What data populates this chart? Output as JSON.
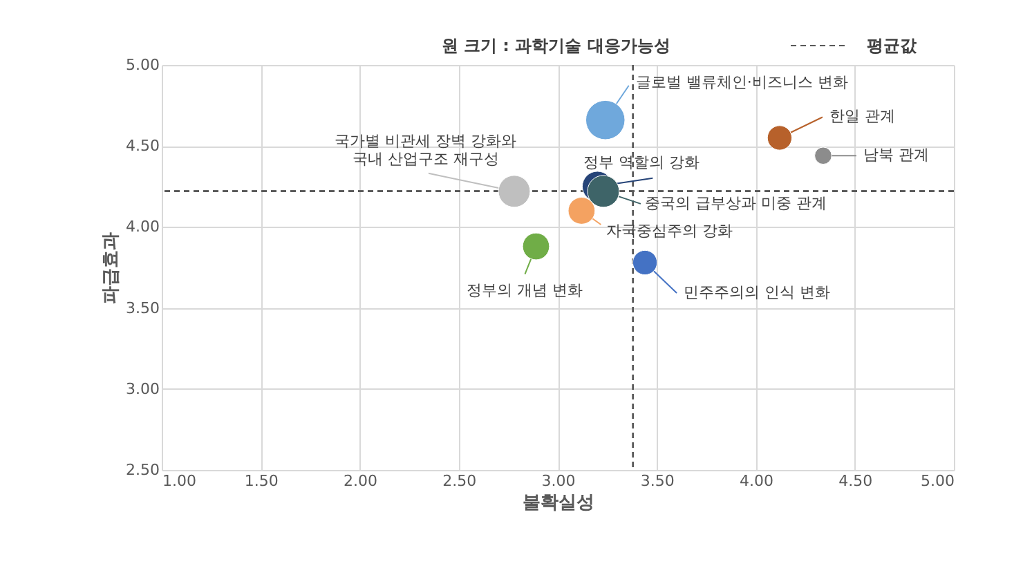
{
  "chart_data": {
    "type": "bubble",
    "xlabel": "불확실성",
    "ylabel": "파급효과",
    "legend_title": "원 크기 : 과학기술 대응가능성",
    "xlim": [
      1.0,
      5.0
    ],
    "xticks": [
      {
        "value": 1.0,
        "label": "1.00"
      },
      {
        "value": 1.5,
        "label": "1.50"
      },
      {
        "value": 2.0,
        "label": "2.00"
      },
      {
        "value": 2.5,
        "label": "2.50"
      },
      {
        "value": 3.0,
        "label": "3.00"
      },
      {
        "value": 3.5,
        "label": "3.50"
      },
      {
        "value": 4.0,
        "label": "4.00"
      },
      {
        "value": 4.5,
        "label": "4.50"
      },
      {
        "value": 5.0,
        "label": "5.00"
      }
    ],
    "ylim": [
      2.5,
      5.0
    ],
    "yticks": [
      {
        "value": 2.5,
        "label": "2.50"
      },
      {
        "value": 3.0,
        "label": "3.00"
      },
      {
        "value": 3.5,
        "label": "3.50"
      },
      {
        "value": 4.0,
        "label": "4.00"
      },
      {
        "value": 4.5,
        "label": "4.50"
      },
      {
        "value": 5.0,
        "label": "5.00"
      }
    ],
    "grid": true,
    "legend": "top",
    "marker": "circle",
    "series": [
      {
        "name": "글로벌 밸류체인·비즈니스 변화",
        "color": "#6fa8dc",
        "x": [
          3.24
        ],
        "values": [
          4.66
        ],
        "sizes": [
          1.0
        ]
      },
      {
        "name": "한일 관계",
        "color": "#b7612b",
        "x": [
          4.12
        ],
        "values": [
          4.55
        ],
        "sizes": [
          0.39
        ]
      },
      {
        "name": "남북 관계",
        "color": "#8c8c8c",
        "x": [
          4.34
        ],
        "values": [
          4.44
        ],
        "sizes": [
          0.19
        ]
      },
      {
        "name": "국가별 비관세 장벽 강화와\n국내 산업구조 재구성",
        "color": "#bfbfbf",
        "x": [
          2.78
        ],
        "values": [
          4.22
        ],
        "sizes": [
          0.66
        ]
      },
      {
        "name": "정부 역할의 강화",
        "color": "#264478",
        "x": [
          3.2
        ],
        "values": [
          4.25
        ],
        "sizes": [
          0.6
        ]
      },
      {
        "name": "중국의 급부상과 미중 관계",
        "color": "#3e6468",
        "x": [
          3.23
        ],
        "values": [
          4.22
        ],
        "sizes": [
          0.66
        ]
      },
      {
        "name": "자국중심주의 강화",
        "color": "#f4a261",
        "x": [
          3.12
        ],
        "values": [
          4.1
        ],
        "sizes": [
          0.47
        ]
      },
      {
        "name": "정부의 개념 변화",
        "color": "#70ad47",
        "x": [
          2.89
        ],
        "values": [
          3.88
        ],
        "sizes": [
          0.47
        ]
      },
      {
        "name": "민주주의의 인식 변화",
        "color": "#4472c4",
        "x": [
          3.44
        ],
        "values": [
          3.78
        ],
        "sizes": [
          0.39
        ]
      }
    ],
    "ref_lines": [
      {
        "axis": "x",
        "value": 3.38,
        "label": "평균값",
        "line_style": "dashed",
        "color": "#595959"
      },
      {
        "axis": "y",
        "value": 4.22,
        "line_style": "dashed",
        "color": "#595959"
      }
    ]
  }
}
